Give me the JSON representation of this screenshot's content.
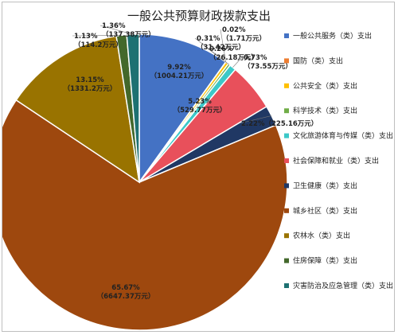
{
  "chart_data": {
    "type": "pie",
    "title": "一般公共预算财政拨款支出",
    "legend_position": "right",
    "slices": [
      {
        "name": "一般公共服务（类）支出",
        "value": 1004.21,
        "percent": "9.92%",
        "amount": "（1004.21万元）",
        "color": "#4472C4"
      },
      {
        "name": "国防（类）支出",
        "value": 1.71,
        "percent": "0.02%",
        "amount": "（1.71万元）",
        "color": "#ED7D31"
      },
      {
        "name": "公共安全（类）支出",
        "value": 31.42,
        "percent": "0.31%",
        "amount": "（31.42万元）",
        "color": "#FFC000"
      },
      {
        "name": "科学技术（类）支出",
        "value": 26.18,
        "percent": "0.26%",
        "amount": "（26.18万元）",
        "color": "#70AD47"
      },
      {
        "name": "文化旅游体育与传媒（类）支出",
        "value": 73.55,
        "percent": "0.73%",
        "amount": "（73.55万元）",
        "color": "#3CC8C8"
      },
      {
        "name": "社会保障和就业（类）支出",
        "value": 529.77,
        "percent": "5.23%",
        "amount": "（529.77万元）",
        "color": "#E8505B"
      },
      {
        "name": "卫生健康（类）支出",
        "value": 225.16,
        "percent": "2.22%",
        "amount": "（225.16万元）",
        "color": "#203864"
      },
      {
        "name": "城乡社区（类）支出",
        "value": 6647.37,
        "percent": "65.67%",
        "amount": "（6647.37万元）",
        "color": "#9E480E"
      },
      {
        "name": "农林水（类）支出",
        "value": 1331.2,
        "percent": "13.15%",
        "amount": "（1331.2万元）",
        "color": "#997300"
      },
      {
        "name": "住房保障（类）支出",
        "value": 114.2,
        "percent": "1.13%",
        "amount": "（114.2万元）",
        "color": "#43682B"
      },
      {
        "name": "灾害防治及应急管理（类）支出",
        "value": 137.38,
        "percent": "1.36%",
        "amount": "（137.38万元）",
        "color": "#1E7172"
      }
    ]
  }
}
